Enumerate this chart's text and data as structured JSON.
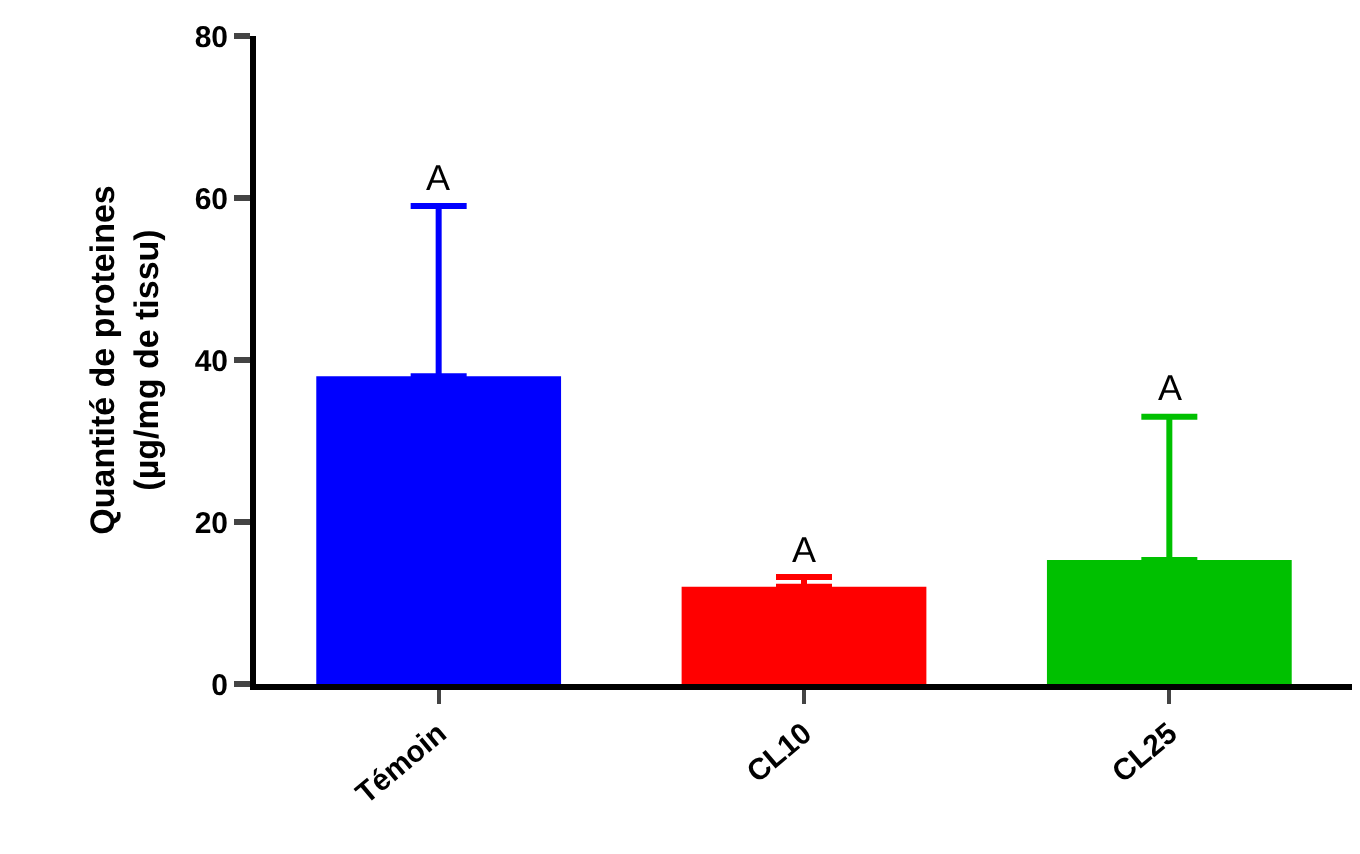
{
  "chart_data": {
    "type": "bar",
    "ylabel": "Quantité de proteines\n(µg/mg de tissu)",
    "categories": [
      "Témoin",
      "CL10",
      "CL25"
    ],
    "values": [
      38,
      12,
      15.3
    ],
    "colors": [
      "#0000ff",
      "#ff0000",
      "#00c000"
    ],
    "errors": [
      [
        38,
        59
      ],
      [
        12,
        13.2
      ],
      [
        15.3,
        33
      ]
    ],
    "ylim": [
      0,
      80
    ],
    "yticks": [
      0,
      20,
      40,
      60,
      80
    ],
    "annotations": [
      {
        "text": "A",
        "x": "Témoin",
        "y": 59
      },
      {
        "text": "A",
        "x": "CL10",
        "y": 13.2
      },
      {
        "text": "A",
        "x": "CL25",
        "y": 33
      }
    ]
  }
}
